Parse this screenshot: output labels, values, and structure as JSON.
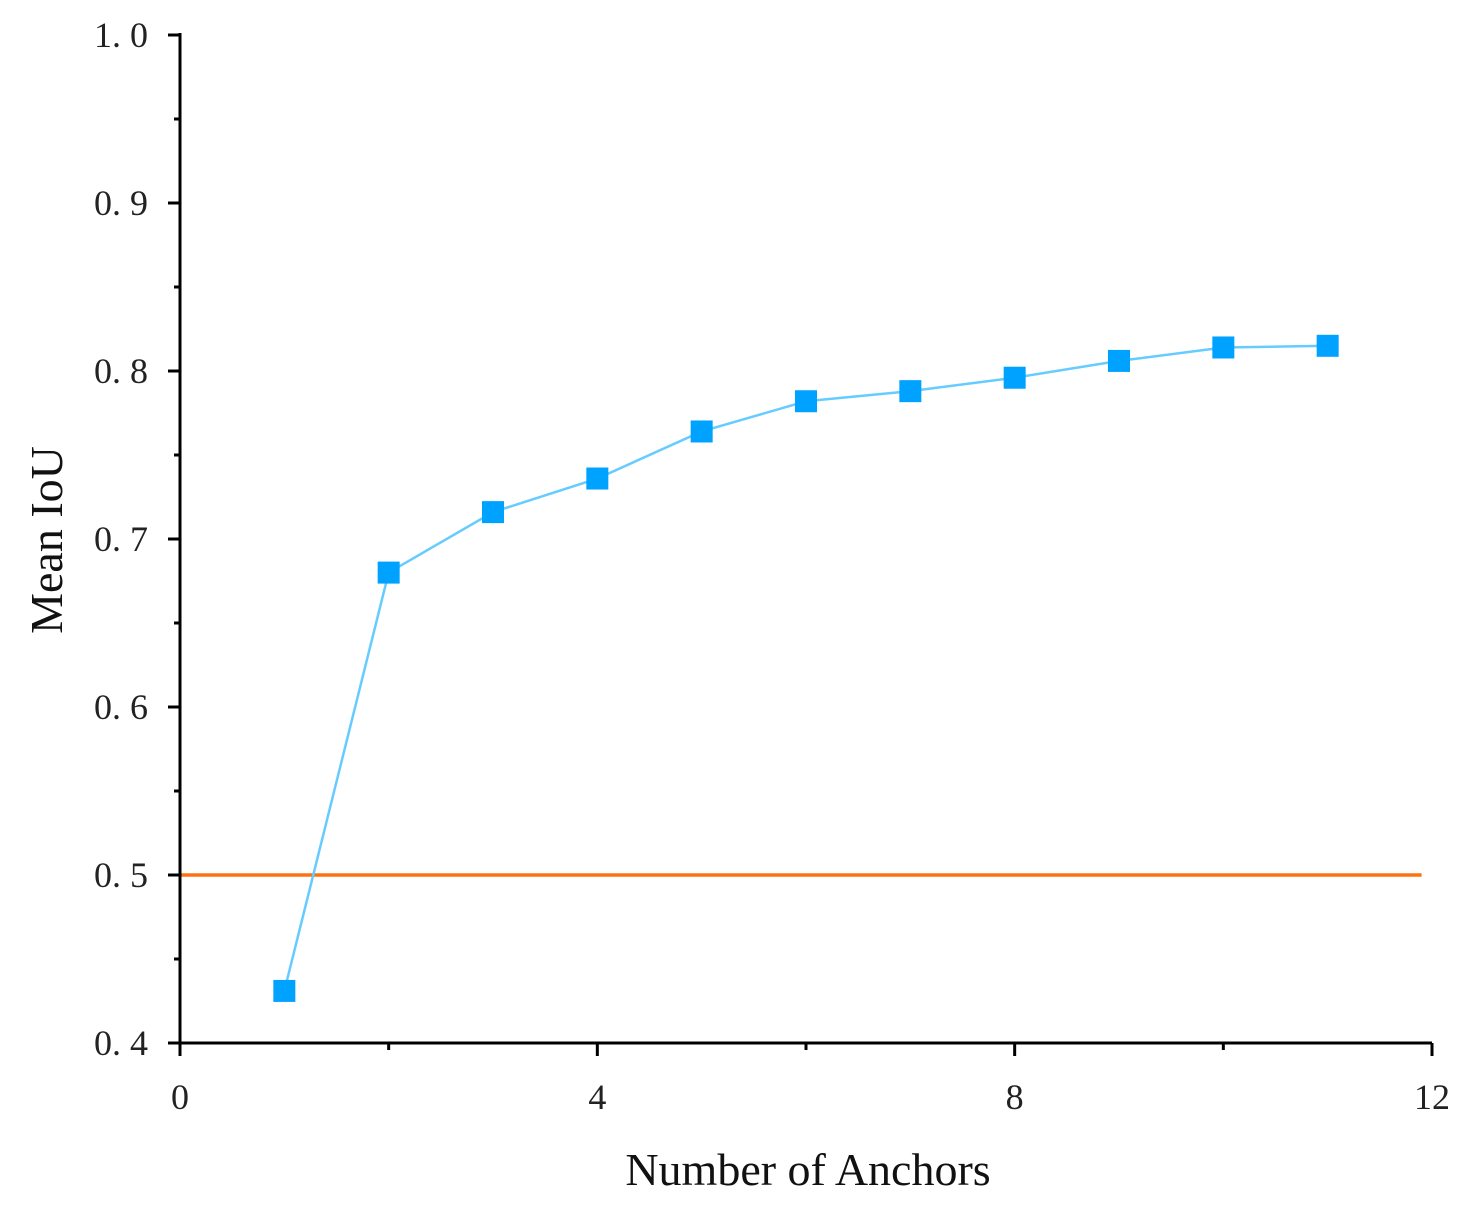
{
  "chart_data": {
    "type": "line",
    "xlabel": "Number of Anchors",
    "ylabel": "Mean IoU",
    "xlim": [
      0,
      12
    ],
    "ylim": [
      0.4,
      1.0
    ],
    "x_ticks": [
      0,
      4,
      8,
      12
    ],
    "x_tick_labels": [
      "0",
      "4",
      "8",
      "12"
    ],
    "x_minor_ticks": [
      2,
      6,
      10
    ],
    "y_ticks": [
      0.4,
      0.5,
      0.6,
      0.7,
      0.8,
      0.9,
      1.0
    ],
    "y_tick_labels": [
      "0. 4",
      "0. 5",
      "0. 6",
      "0. 7",
      "0. 8",
      "0. 9",
      "1. 0"
    ],
    "y_minor_ticks": [
      0.45,
      0.55,
      0.65,
      0.75,
      0.85,
      0.95
    ],
    "grid": false,
    "series": [
      {
        "x": [
          1,
          2,
          3,
          4,
          5,
          6,
          7,
          8,
          9,
          10,
          11
        ],
        "values": [
          0.431,
          0.68,
          0.716,
          0.736,
          0.764,
          0.782,
          0.788,
          0.796,
          0.806,
          0.814,
          0.815
        ],
        "color": "#00a2ff",
        "line_color": "#66ccff",
        "marker": "square"
      }
    ],
    "reference_line": {
      "y": 0.5,
      "color": "#ff7010"
    }
  }
}
